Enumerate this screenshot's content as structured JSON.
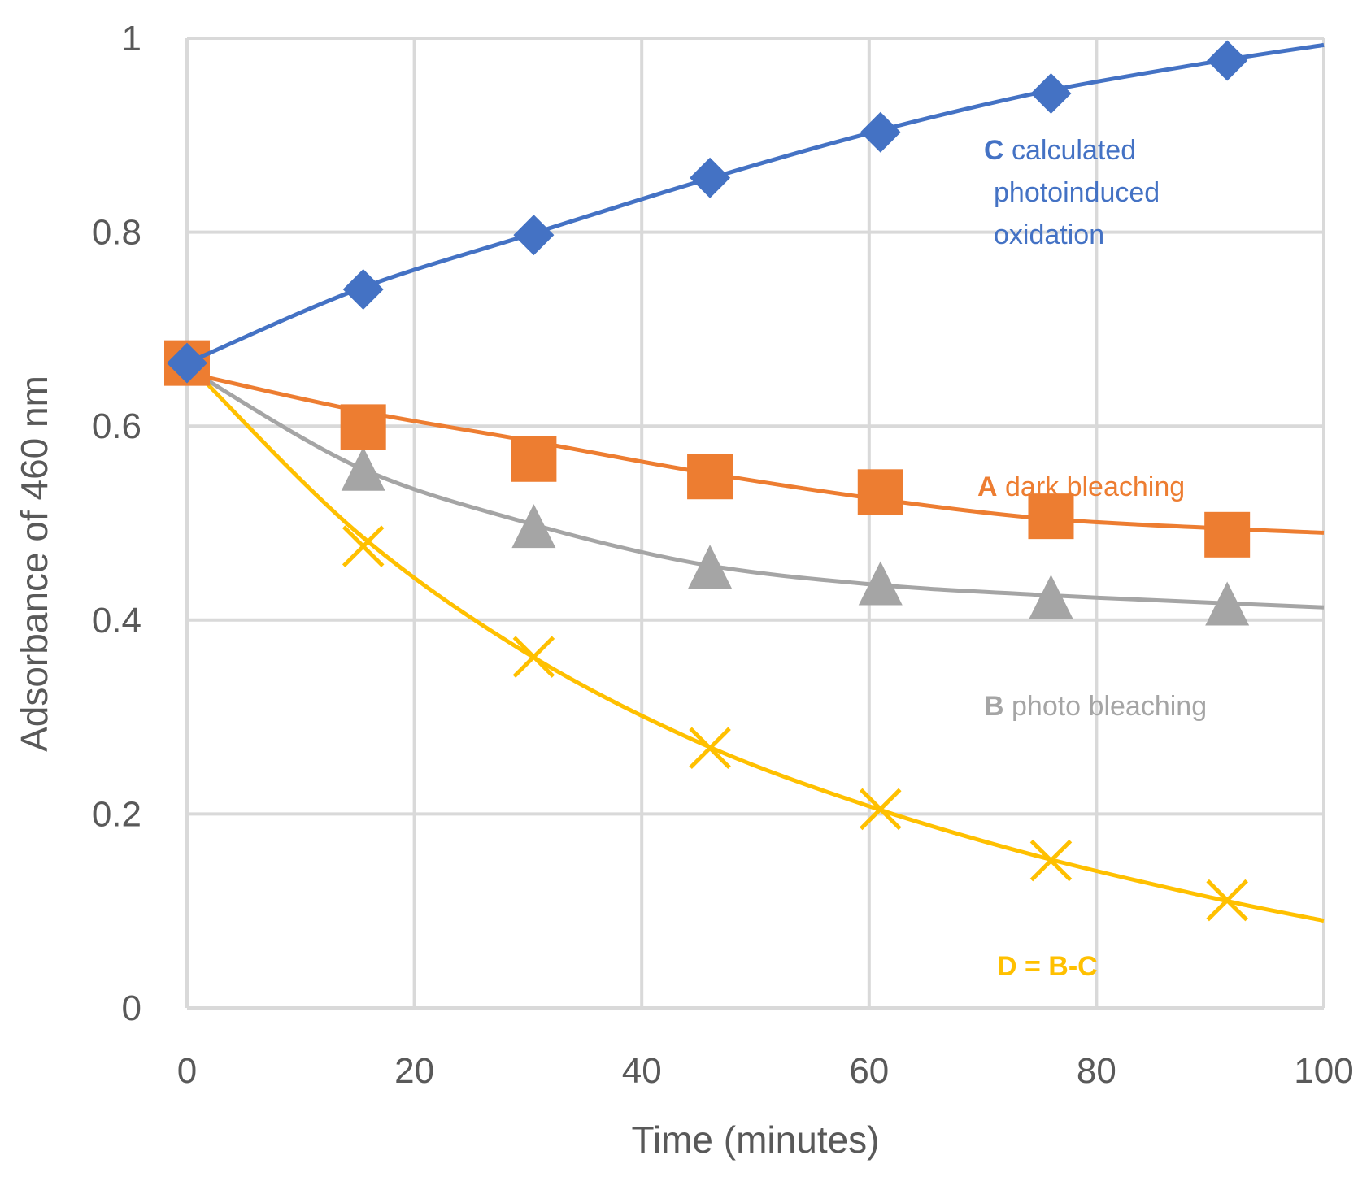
{
  "chart_data": {
    "type": "line",
    "title": "",
    "xlabel": "Time (minutes)",
    "ylabel": "Adsorbance of 460 nm",
    "xlim": [
      0,
      100
    ],
    "ylim": [
      0,
      1
    ],
    "xticks": [
      0,
      20,
      40,
      60,
      80,
      100
    ],
    "yticks": [
      0,
      0.2,
      0.4,
      0.6,
      0.8,
      1
    ],
    "ytick_labels": [
      "0",
      "0.2",
      "0.4",
      "0.6",
      "0.8",
      "1"
    ],
    "grid": true,
    "legend": "none",
    "series": [
      {
        "key": "C",
        "name": "C calculated photoinduced oxidation",
        "marker": "diamond",
        "color": "#4472C4",
        "x": [
          0,
          15.5,
          30.5,
          46,
          61,
          76,
          91.5
        ],
        "y": [
          0.665,
          0.741,
          0.797,
          0.856,
          0.903,
          0.943,
          0.977
        ],
        "fit": [
          [
            0,
            0.665
          ],
          [
            15,
            0.741
          ],
          [
            30,
            0.797
          ],
          [
            45,
            0.852
          ],
          [
            60,
            0.902
          ],
          [
            75,
            0.944
          ],
          [
            90,
            0.975
          ],
          [
            100,
            0.993
          ]
        ],
        "annotation": {
          "bold": "C",
          "lines": [
            " calculated",
            "photoinduced",
            "oxidation"
          ]
        }
      },
      {
        "key": "A",
        "name": "A dark bleaching",
        "marker": "square",
        "color": "#ED7D31",
        "x": [
          0,
          15.5,
          30.5,
          46,
          61,
          76,
          91.5
        ],
        "y": [
          0.665,
          0.599,
          0.566,
          0.548,
          0.532,
          0.507,
          0.488
        ],
        "fit": [
          [
            0,
            0.655
          ],
          [
            15,
            0.616
          ],
          [
            30,
            0.585
          ],
          [
            45,
            0.553
          ],
          [
            60,
            0.526
          ],
          [
            75,
            0.505
          ],
          [
            90,
            0.495
          ],
          [
            100,
            0.49
          ]
        ],
        "annotation": {
          "bold": "A",
          "lines": [
            " dark bleaching"
          ]
        }
      },
      {
        "key": "B",
        "name": "B photo bleaching",
        "marker": "triangle",
        "color": "#A5A5A5",
        "x": [
          0,
          15.5,
          30.5,
          46,
          61,
          76,
          91.5
        ],
        "y": [
          0.665,
          0.556,
          0.497,
          0.455,
          0.438,
          0.424,
          0.417
        ],
        "fit": [
          [
            0,
            0.66
          ],
          [
            15,
            0.558
          ],
          [
            30,
            0.5
          ],
          [
            45,
            0.458
          ],
          [
            60,
            0.437
          ],
          [
            75,
            0.426
          ],
          [
            90,
            0.418
          ],
          [
            100,
            0.413
          ]
        ],
        "annotation": {
          "bold": "B",
          "lines": [
            " photo bleaching"
          ]
        }
      },
      {
        "key": "D",
        "name": "D = B-C",
        "marker": "x",
        "color": "#FFC000",
        "x": [
          0,
          15.5,
          30.5,
          46,
          61,
          76,
          91.5
        ],
        "y": [
          0.665,
          0.476,
          0.362,
          0.268,
          0.205,
          0.152,
          0.111
        ],
        "fit": [
          [
            0,
            0.665
          ],
          [
            15,
            0.49
          ],
          [
            30,
            0.365
          ],
          [
            45,
            0.274
          ],
          [
            60,
            0.208
          ],
          [
            75,
            0.156
          ],
          [
            90,
            0.114
          ],
          [
            100,
            0.09
          ]
        ],
        "annotation": {
          "bold": "D = B-C",
          "lines": []
        }
      }
    ]
  }
}
